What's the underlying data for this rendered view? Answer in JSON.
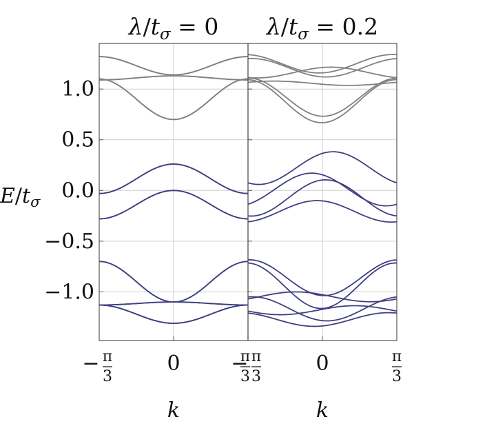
{
  "chart_data": {
    "type": "line",
    "panels": [
      {
        "title": {
          "lambda": "λ",
          "slash": "/",
          "t": "t",
          "sub": "σ",
          "eq": " = ",
          "value": "0"
        },
        "lambda_value": 0,
        "colors": {
          "upper": "#808080",
          "lower": "#3f3f80"
        }
      },
      {
        "title": {
          "lambda": "λ",
          "slash": "/",
          "t": "t",
          "sub": "σ",
          "eq": " = ",
          "value": "0.2"
        },
        "lambda_value": 0.2,
        "colors": {
          "upper": "#808080",
          "lower": "#3f3f80"
        }
      }
    ],
    "xlabel": "k",
    "ylabel": {
      "main": "E",
      "slash": "/",
      "t": "t",
      "sub": "σ"
    },
    "xlim": [
      -1.0472,
      1.0472
    ],
    "ylim": [
      -1.48,
      1.45
    ],
    "x_ticks": [
      {
        "value": -1.0472,
        "sign": "−",
        "num": "π",
        "den": "3"
      },
      {
        "value": 0,
        "label": "0"
      },
      {
        "value": 1.0472,
        "sign": "",
        "num": "π",
        "den": "3"
      }
    ],
    "y_ticks": [
      {
        "value": 1.0,
        "label": "1.0"
      },
      {
        "value": 0.5,
        "label": "0.5"
      },
      {
        "value": 0.0,
        "label": "0.0"
      },
      {
        "value": -0.5,
        "label": "−0.5"
      },
      {
        "value": -1.0,
        "label": "−1.0"
      }
    ],
    "grid": true,
    "band_groups": [
      {
        "group": "upper",
        "bands": [
          {
            "k_edge": 1.14,
            "k_mid": 1.32,
            "split": 0.015
          },
          {
            "k_edge": 1.13,
            "k_mid": 1.09,
            "split": 0.04
          },
          {
            "k_edge": 0.7,
            "k_mid": 1.1,
            "split": 0.015
          }
        ]
      },
      {
        "group": "lower",
        "bands": [
          {
            "k_edge": 0.26,
            "k_mid": -0.03,
            "split": 0.08
          },
          {
            "k_edge": 0.0,
            "k_mid": -0.28,
            "split": 0.05
          },
          {
            "k_edge": -1.1,
            "k_mid": -0.7,
            "split": 0.03
          },
          {
            "k_edge": -1.1,
            "k_mid": -1.13,
            "split": 0.05
          },
          {
            "k_edge": -1.31,
            "k_mid": -1.13,
            "split": 0.04
          }
        ]
      }
    ]
  }
}
